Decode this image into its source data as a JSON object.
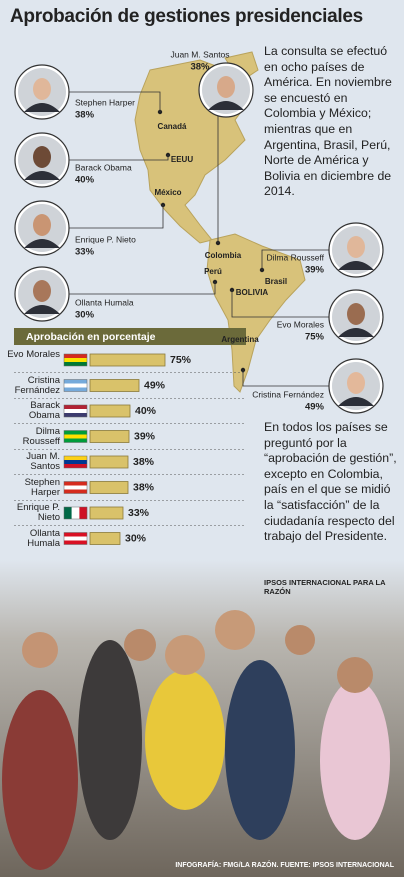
{
  "title": "Aprobación de gestiones presidenciales",
  "intro": "La consulta se efectuó en ocho países de América. En noviembre se encuestó en Colombia y México; mientras que en Argentina, Brasil, Perú, Norte de América y Bolivia en diciembre de 2014.",
  "map": {
    "countries": [
      "Canadá",
      "EEUU",
      "México",
      "Colombia",
      "Perú",
      "Brasil",
      "BOLIVIA",
      "Argentina"
    ],
    "people": [
      {
        "name": "Juan M. Santos",
        "approval": "38%"
      },
      {
        "name": "Stephen Harper",
        "approval": "38%"
      },
      {
        "name": "Barack Obama",
        "approval": "40%"
      },
      {
        "name": "Enrique P. Nieto",
        "approval": "33%"
      },
      {
        "name": "Ollanta Humala",
        "approval": "30%"
      },
      {
        "name": "Dilma Rousseff",
        "approval": "39%"
      },
      {
        "name": "Evo Morales",
        "approval": "75%"
      },
      {
        "name": "Cristina Fernández",
        "approval": "49%"
      }
    ]
  },
  "chart_data": {
    "type": "bar",
    "orientation": "horizontal",
    "title": "Aprobación en porcentaje",
    "categories": [
      "Evo Morales",
      "Cristina Fernández",
      "Barack Obama",
      "Dilma Rousseff",
      "Juan M. Santos",
      "Stephen Harper",
      "Enrique P. Nieto",
      "Ollanta Humala"
    ],
    "values": [
      75,
      49,
      40,
      39,
      38,
      38,
      33,
      30
    ],
    "value_labels": [
      "75%",
      "49%",
      "40%",
      "39%",
      "38%",
      "38%",
      "33%",
      "30%"
    ],
    "color": "#d9c26a"
  },
  "note": "En todos los países se preguntó por la “aprobación de gestión”, excepto en Colombia, país en el que se midió la “satisfacción” de la ciudadanía respecto del trabajo del Presidente.",
  "note_source": "IPSOS INTERNACIONAL PARA LA RAZÓN",
  "credit": "INFOGRAFÍA: FMG/LA RAZÓN. FUENTE: IPSOS INTERNACIONAL"
}
